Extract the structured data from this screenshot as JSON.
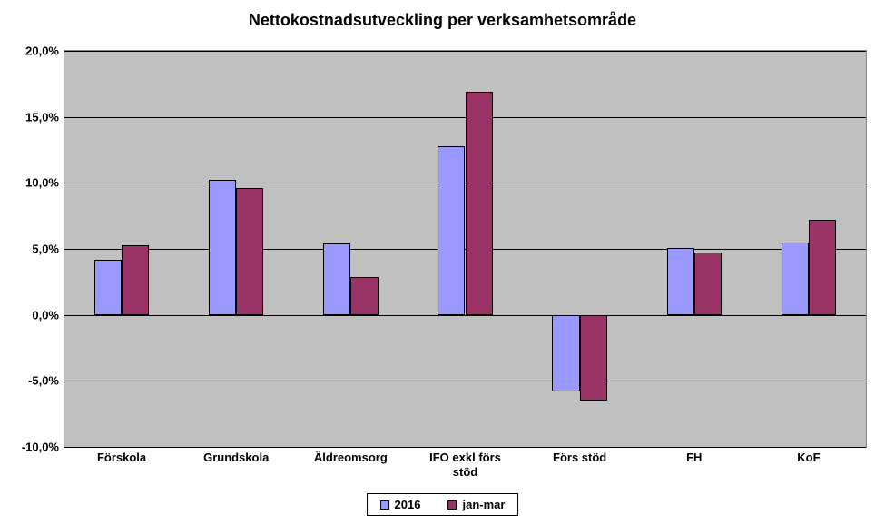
{
  "chart": {
    "type": "bar",
    "title": "Nettokostnadsutveckling per verksamhetsområde",
    "title_fontsize": 18,
    "background_color": "#ffffff",
    "plot_background_color": "#c0c0c0",
    "grid_color": "#000000",
    "label_fontsize": 13,
    "font_family": "Arial",
    "ylim": [
      -10,
      20
    ],
    "ytick_step": 5,
    "ytick_labels": [
      "-10,0%",
      "-5,0%",
      "0,0%",
      "5,0%",
      "10,0%",
      "15,0%",
      "20,0%"
    ],
    "categories": [
      "Förskola",
      "Grundskola",
      "Äldreomsorg",
      "IFO exkl förs\nstöd",
      "Förs stöd",
      "FH",
      "KoF"
    ],
    "series": [
      {
        "name": "2016",
        "color": "#9999ff",
        "values": [
          4.2,
          10.2,
          5.4,
          12.8,
          -5.8,
          5.1,
          5.5
        ]
      },
      {
        "name": "jan-mar",
        "color": "#993366",
        "values": [
          5.3,
          9.6,
          2.9,
          16.9,
          -6.5,
          4.7,
          7.2
        ]
      }
    ],
    "bar_gap_pct": 40,
    "bar_width_pct": 24
  }
}
